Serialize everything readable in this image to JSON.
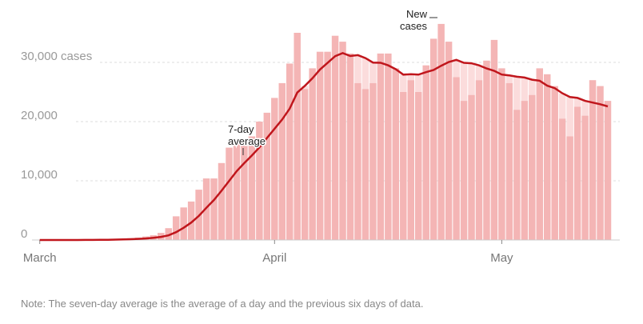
{
  "chart_data": {
    "type": "bar",
    "title": "",
    "series_name": "New cases",
    "average_name": "7-day average",
    "start_date": "2020-03-01",
    "values": [
      0,
      0,
      0,
      0,
      10,
      20,
      30,
      50,
      80,
      100,
      150,
      200,
      300,
      400,
      600,
      800,
      1200,
      2000,
      4000,
      5500,
      6500,
      8500,
      10400,
      10400,
      13000,
      15600,
      17000,
      16000,
      17500,
      20000,
      21500,
      24000,
      26500,
      29800,
      35000,
      25500,
      29000,
      31800,
      31800,
      34500,
      33500,
      31500,
      26500,
      25500,
      26500,
      31500,
      31500,
      29000,
      25000,
      27000,
      25000,
      29500,
      34000,
      36500,
      33500,
      27500,
      23500,
      24500,
      27000,
      30300,
      33800,
      29000,
      26500,
      22000,
      23500,
      24500,
      29000,
      28000,
      26000,
      20500,
      17500,
      22500,
      21000,
      27000,
      26000,
      23500
    ],
    "ylim": [
      0,
      37000
    ],
    "y_ticks": [
      {
        "value": 0,
        "label": "0"
      },
      {
        "value": 10000,
        "label": "10,000"
      },
      {
        "value": 20000,
        "label": "20,000"
      },
      {
        "value": 30000,
        "label": "30,000 cases"
      }
    ],
    "x_ticks": [
      {
        "day": 0,
        "label": "March"
      },
      {
        "day": 31,
        "label": "April"
      },
      {
        "day": 61,
        "label": "May"
      }
    ],
    "annotations": {
      "average_label": [
        "7-day",
        "average"
      ],
      "bars_label": [
        "New",
        "cases"
      ]
    },
    "colors": {
      "bar": "#f4b5b5",
      "bar_light": "#fbdcdc",
      "line": "#c0161c"
    },
    "grid": true
  },
  "note": "Note: The seven-day average is the average of a day and the previous six days of data."
}
